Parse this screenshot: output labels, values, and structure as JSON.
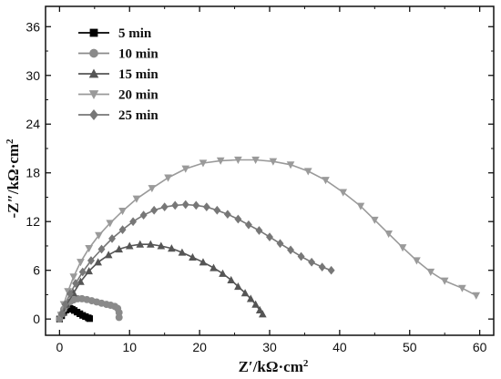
{
  "chart_data": {
    "type": "scatter",
    "title": "",
    "xlabel": "Z′/kΩ·cm",
    "xlabel_sup": "2",
    "ylabel": "-Z″/kΩ·cm",
    "ylabel_sup": "2",
    "xlim": [
      -2,
      62
    ],
    "ylim": [
      -2,
      38.5
    ],
    "xticks": [
      0,
      10,
      20,
      30,
      40,
      50,
      60
    ],
    "yticks": [
      0,
      6,
      12,
      18,
      24,
      30,
      36
    ],
    "grid": false,
    "legend_position": "top-left",
    "series": [
      {
        "name": "5 min",
        "color": "#000000",
        "marker": "square",
        "x": [
          0.0,
          0.3,
          0.6,
          0.9,
          1.2,
          1.5,
          1.8,
          2.1,
          2.5,
          2.9,
          3.3,
          3.7,
          4.1,
          4.3
        ],
        "y": [
          0.0,
          0.4,
          0.8,
          1.1,
          1.25,
          1.3,
          1.2,
          1.05,
          0.85,
          0.65,
          0.45,
          0.3,
          0.15,
          0.05
        ]
      },
      {
        "name": "10 min",
        "color": "#8a8a8a",
        "marker": "circle",
        "x": [
          0.0,
          0.3,
          0.6,
          1.0,
          1.5,
          2.0,
          2.6,
          3.2,
          3.9,
          4.6,
          5.3,
          6.0,
          6.7,
          7.3,
          7.9,
          8.3,
          8.5,
          8.5
        ],
        "y": [
          0.0,
          0.6,
          1.2,
          1.7,
          2.1,
          2.35,
          2.5,
          2.5,
          2.4,
          2.25,
          2.1,
          1.95,
          1.8,
          1.7,
          1.55,
          1.3,
          0.8,
          0.2
        ]
      },
      {
        "name": "15 min",
        "color": "#555555",
        "marker": "triangle-up",
        "x": [
          0.5,
          1.0,
          2.0,
          3.0,
          4.2,
          5.5,
          7.0,
          8.5,
          10.0,
          11.5,
          13.0,
          14.5,
          16.0,
          17.5,
          19.0,
          20.5,
          22.0,
          23.3,
          24.5,
          25.5,
          26.5,
          27.3,
          28.0,
          28.6,
          29.0
        ],
        "y": [
          0.8,
          1.8,
          3.2,
          4.6,
          5.9,
          7.0,
          7.9,
          8.6,
          9.0,
          9.2,
          9.2,
          9.0,
          8.7,
          8.2,
          7.6,
          7.0,
          6.3,
          5.6,
          4.8,
          4.0,
          3.2,
          2.5,
          1.8,
          1.1,
          0.6
        ]
      },
      {
        "name": "20 min",
        "color": "#9a9a9a",
        "marker": "triangle-down",
        "x": [
          0.2,
          0.6,
          1.2,
          2.0,
          3.0,
          4.2,
          5.6,
          7.2,
          9.0,
          11.0,
          13.2,
          15.5,
          18.0,
          20.5,
          23.0,
          25.5,
          28.0,
          30.5,
          33.0,
          35.5,
          38.0,
          40.5,
          43.0,
          45.0,
          47.0,
          49.0,
          51.0,
          53.0,
          55.0,
          57.5,
          59.5
        ],
        "y": [
          0.5,
          1.8,
          3.4,
          5.2,
          7.0,
          8.7,
          10.3,
          11.8,
          13.3,
          14.8,
          16.1,
          17.4,
          18.5,
          19.2,
          19.5,
          19.6,
          19.6,
          19.4,
          19.0,
          18.2,
          17.1,
          15.6,
          13.9,
          12.2,
          10.5,
          8.8,
          7.2,
          5.8,
          4.7,
          3.8,
          2.9
        ]
      },
      {
        "name": "25 min",
        "color": "#777777",
        "marker": "diamond",
        "x": [
          0.3,
          0.8,
          1.5,
          2.3,
          3.3,
          4.5,
          6.0,
          7.5,
          9.0,
          10.5,
          12.0,
          13.5,
          15.0,
          16.5,
          18.0,
          19.5,
          21.0,
          22.5,
          24.0,
          25.5,
          27.0,
          28.5,
          30.0,
          31.5,
          33.0,
          34.5,
          36.0,
          37.5,
          38.8
        ],
        "y": [
          0.6,
          1.8,
          3.1,
          4.4,
          5.8,
          7.2,
          8.6,
          9.9,
          11.0,
          12.0,
          12.8,
          13.4,
          13.8,
          14.0,
          14.1,
          14.0,
          13.8,
          13.4,
          12.9,
          12.3,
          11.6,
          10.9,
          10.1,
          9.3,
          8.5,
          7.7,
          7.0,
          6.4,
          6.0
        ]
      }
    ]
  }
}
